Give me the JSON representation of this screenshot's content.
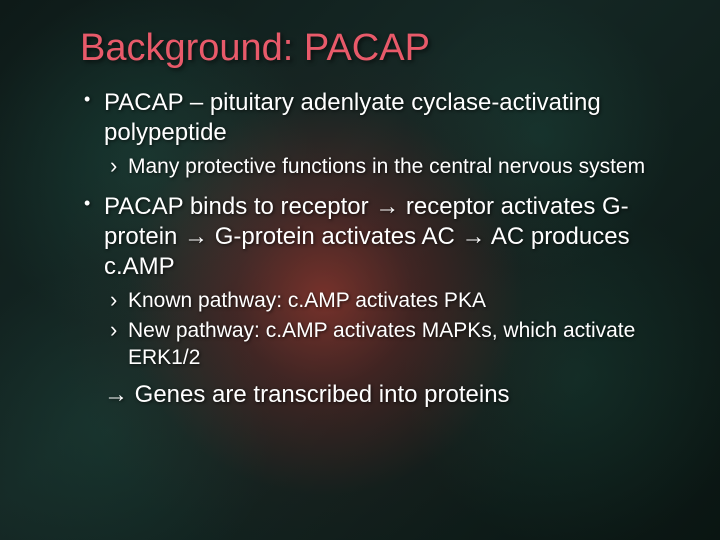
{
  "slide": {
    "title": "Background: PACAP",
    "title_color": "#e85a6a",
    "text_color": "#ffffff",
    "bg_base": "#0e1a18",
    "bullets": {
      "b1": "PACAP – pituitary adenlyate cyclase-activating polypeptide",
      "b1_sub1": "Many protective functions in the central nervous system",
      "b2": "PACAP binds to receptor → receptor activates G-protein → G-protein activates AC → AC produces c.AMP",
      "b2_sub1": "Known pathway: c.AMP activates PKA",
      "b2_sub2": "New pathway: c.AMP activates MAPKs, which activate ERK1/2",
      "result": "→ Genes are transcribed into proteins"
    },
    "fonts": {
      "title_pt": 38,
      "l1_pt": 24,
      "l2_pt": 21
    }
  }
}
